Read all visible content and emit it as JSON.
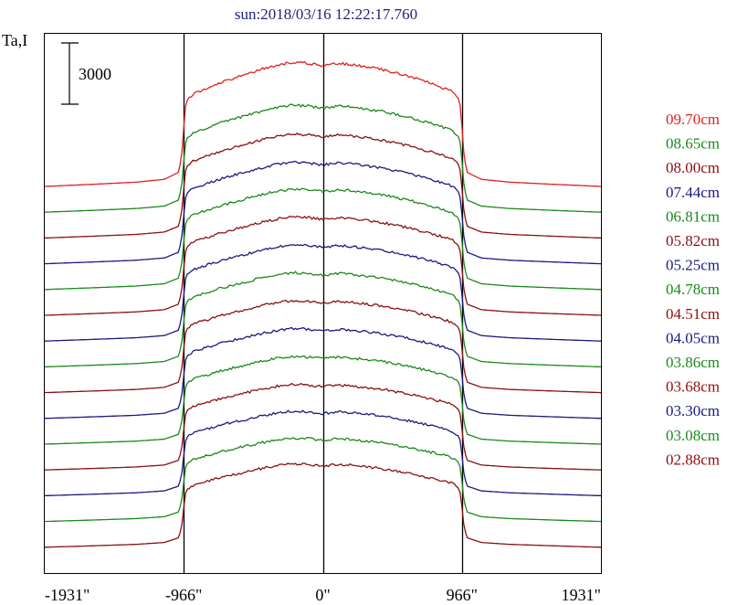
{
  "chart_data": {
    "type": "line",
    "title": "sun:2018/03/16 12:22:17.760",
    "ylabel": "Ta,I",
    "xlabel": "",
    "scale_bar_label": "3000",
    "scale_bar_value": 3000,
    "x_ticks": [
      {
        "value": -1931,
        "label": "-1931\""
      },
      {
        "value": -966,
        "label": "-966\""
      },
      {
        "value": 0,
        "label": "0\""
      },
      {
        "value": 966,
        "label": "966\""
      },
      {
        "value": 1931,
        "label": "1931\""
      }
    ],
    "xlim": [
      -1931,
      1931
    ],
    "vertical_lines": [
      -966,
      0,
      966
    ],
    "grid": false,
    "legend_placement": "right",
    "series": [
      {
        "name": "09.70cm",
        "color": "#e02020"
      },
      {
        "name": "08.65cm",
        "color": "#1a8a1a"
      },
      {
        "name": "08.00cm",
        "color": "#8b1010"
      },
      {
        "name": "07.44cm",
        "color": "#1a1a80"
      },
      {
        "name": "06.81cm",
        "color": "#1a8a1a"
      },
      {
        "name": "05.82cm",
        "color": "#8b1010"
      },
      {
        "name": "05.25cm",
        "color": "#1a1a80"
      },
      {
        "name": "04.78cm",
        "color": "#1a8a1a"
      },
      {
        "name": "04.51cm",
        "color": "#8b1010"
      },
      {
        "name": "04.05cm",
        "color": "#1a1a80"
      },
      {
        "name": "03.86cm",
        "color": "#1a8a1a"
      },
      {
        "name": "03.68cm",
        "color": "#8b1010"
      },
      {
        "name": "03.30cm",
        "color": "#1a1a80"
      },
      {
        "name": "03.08cm",
        "color": "#1a8a1a"
      },
      {
        "name": "02.88cm",
        "color": "#8b1010"
      }
    ],
    "profile_x": [
      -1931,
      -1600,
      -1300,
      -1100,
      -1000,
      -980,
      -966,
      -950,
      -900,
      -800,
      -700,
      -600,
      -500,
      -400,
      -300,
      -200,
      -100,
      0,
      100,
      200,
      300,
      400,
      500,
      600,
      700,
      800,
      900,
      950,
      966,
      980,
      1000,
      1100,
      1300,
      1600,
      1931
    ],
    "profile_y": [
      0,
      90,
      180,
      300,
      600,
      1300,
      2500,
      3600,
      3900,
      4150,
      4400,
      4600,
      4800,
      5000,
      5150,
      5250,
      5200,
      5100,
      5200,
      5150,
      5050,
      4950,
      4800,
      4650,
      4450,
      4250,
      4000,
      3650,
      2500,
      1300,
      600,
      300,
      180,
      90,
      0
    ],
    "profile_scale": [
      1.16,
      1.0,
      0.97,
      0.95,
      0.94,
      0.92,
      0.9,
      0.88,
      0.86,
      0.84,
      0.82,
      0.8,
      0.79,
      0.78,
      0.78
    ]
  }
}
